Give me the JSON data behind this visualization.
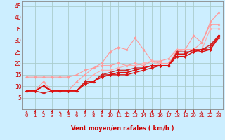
{
  "title": "",
  "xlabel": "Vent moyen/en rafales ( km/h )",
  "ylabel": "",
  "bg_color": "#cceeff",
  "grid_color": "#aacccc",
  "xlabel_color": "#cc0000",
  "tick_color": "#cc0000",
  "axis_color": "#888888",
  "xlim": [
    -0.5,
    23.5
  ],
  "ylim": [
    0,
    47
  ],
  "yticks": [
    5,
    10,
    15,
    20,
    25,
    30,
    35,
    40,
    45
  ],
  "xticks": [
    0,
    1,
    2,
    3,
    4,
    5,
    6,
    7,
    8,
    9,
    10,
    11,
    12,
    13,
    14,
    15,
    16,
    17,
    18,
    19,
    20,
    21,
    22,
    23
  ],
  "lines": [
    {
      "x": [
        0,
        1,
        2,
        3,
        4,
        5,
        6,
        7,
        8,
        9,
        10,
        11,
        12,
        13,
        14,
        15,
        16,
        17,
        18,
        19,
        20,
        21,
        22,
        23
      ],
      "y": [
        14,
        14,
        14,
        14,
        14,
        14,
        15,
        17,
        18,
        20,
        25,
        27,
        26,
        31,
        26,
        21,
        21,
        22,
        26,
        26,
        32,
        29,
        38,
        42
      ],
      "color": "#ff9999",
      "lw": 0.8
    },
    {
      "x": [
        0,
        1,
        2,
        3,
        4,
        5,
        6,
        7,
        8,
        9,
        10,
        11,
        12,
        13,
        14,
        15,
        16,
        17,
        18,
        19,
        20,
        21,
        22,
        23
      ],
      "y": [
        8,
        8,
        12,
        8,
        8,
        8,
        12,
        15,
        18,
        19,
        19,
        20,
        19,
        20,
        19,
        21,
        20,
        20,
        25,
        26,
        26,
        29,
        37,
        37
      ],
      "color": "#ff9999",
      "lw": 0.8
    },
    {
      "x": [
        0,
        1,
        2,
        3,
        4,
        5,
        6,
        7,
        8,
        9,
        10,
        11,
        12,
        13,
        14,
        15,
        16,
        17,
        18,
        19,
        20,
        21,
        22,
        23
      ],
      "y": [
        8,
        8,
        7,
        8,
        8,
        8,
        8,
        12,
        15,
        17,
        17,
        18,
        19,
        19,
        20,
        21,
        19,
        19,
        26,
        26,
        26,
        26,
        35,
        35
      ],
      "color": "#ffaaaa",
      "lw": 0.8
    },
    {
      "x": [
        0,
        1,
        2,
        3,
        4,
        5,
        6,
        7,
        8,
        9,
        10,
        11,
        12,
        13,
        14,
        15,
        16,
        17,
        18,
        19,
        20,
        21,
        22,
        23
      ],
      "y": [
        8,
        8,
        7,
        8,
        8,
        8,
        8,
        12,
        12,
        15,
        16,
        17,
        17,
        18,
        18,
        19,
        19,
        19,
        25,
        25,
        25,
        26,
        28,
        32
      ],
      "color": "#cc2222",
      "lw": 0.9
    },
    {
      "x": [
        0,
        1,
        2,
        3,
        4,
        5,
        6,
        7,
        8,
        9,
        10,
        11,
        12,
        13,
        14,
        15,
        16,
        17,
        18,
        19,
        20,
        21,
        22,
        23
      ],
      "y": [
        8,
        8,
        10,
        8,
        8,
        8,
        8,
        12,
        12,
        15,
        15,
        16,
        16,
        17,
        18,
        19,
        19,
        19,
        24,
        24,
        26,
        26,
        27,
        32
      ],
      "color": "#cc2222",
      "lw": 0.9
    },
    {
      "x": [
        0,
        1,
        2,
        3,
        4,
        5,
        6,
        7,
        8,
        9,
        10,
        11,
        12,
        13,
        14,
        15,
        16,
        17,
        18,
        19,
        20,
        21,
        22,
        23
      ],
      "y": [
        8,
        8,
        10,
        8,
        8,
        8,
        8,
        11,
        12,
        14,
        15,
        16,
        16,
        17,
        18,
        19,
        19,
        19,
        24,
        24,
        26,
        25,
        26,
        31
      ],
      "color": "#dd1111",
      "lw": 1.0
    },
    {
      "x": [
        0,
        1,
        2,
        3,
        4,
        5,
        6,
        7,
        8,
        9,
        10,
        11,
        12,
        13,
        14,
        15,
        16,
        17,
        18,
        19,
        20,
        21,
        22,
        23
      ],
      "y": [
        8,
        8,
        10,
        8,
        8,
        8,
        8,
        11,
        12,
        14,
        15,
        15,
        15,
        16,
        17,
        18,
        19,
        19,
        23,
        23,
        25,
        26,
        26,
        32
      ],
      "color": "#dd1111",
      "lw": 1.0
    }
  ],
  "marker": "D",
  "markersize": 2.0,
  "arrow_color": "#cc0000",
  "xlabel_fontsize": 6.0,
  "tick_fontsize_x": 5.0,
  "tick_fontsize_y": 5.5
}
